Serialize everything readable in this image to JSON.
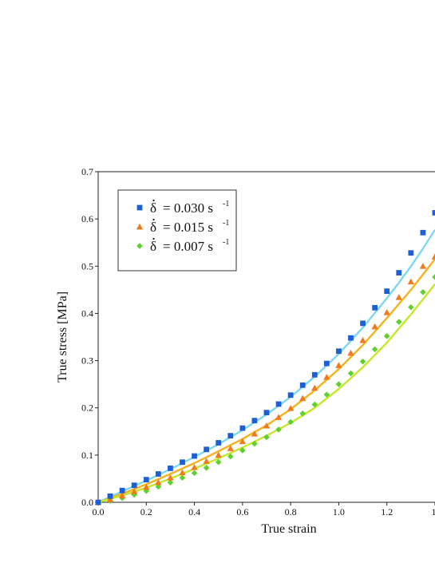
{
  "chart_data": {
    "type": "scatter",
    "title": "",
    "xlabel": "True strain",
    "ylabel": "True stress [MPa]",
    "xlim": [
      0.0,
      1.4
    ],
    "ylim": [
      0.0,
      0.7
    ],
    "xticks": [
      "0.0",
      "0.2",
      "0.4",
      "0.6",
      "0.8",
      "1.0",
      "1.2",
      "1."
    ],
    "yticks": [
      "0.0",
      "0.1",
      "0.2",
      "0.3",
      "0.4",
      "0.5",
      "0.6",
      "0.7"
    ],
    "legend_position": "top-left",
    "grid": false,
    "series": [
      {
        "name": "δ̇ = 0.030 s⁻¹",
        "legend_rate": "0.030",
        "marker": "square",
        "marker_color": "#1f5fd6",
        "fit_color": "#7ad8f5",
        "x": [
          0.0,
          0.05,
          0.1,
          0.15,
          0.2,
          0.25,
          0.3,
          0.35,
          0.4,
          0.45,
          0.5,
          0.55,
          0.6,
          0.65,
          0.7,
          0.75,
          0.8,
          0.85,
          0.9,
          0.95,
          1.0,
          1.05,
          1.1,
          1.15,
          1.2,
          1.25,
          1.3,
          1.35,
          1.4
        ],
        "y": [
          0.0,
          0.013,
          0.025,
          0.036,
          0.048,
          0.06,
          0.072,
          0.085,
          0.098,
          0.112,
          0.126,
          0.141,
          0.157,
          0.173,
          0.19,
          0.208,
          0.227,
          0.248,
          0.27,
          0.294,
          0.32,
          0.348,
          0.379,
          0.412,
          0.447,
          0.486,
          0.528,
          0.571,
          0.613
        ],
        "fit_x": [
          0.0,
          0.1,
          0.2,
          0.3,
          0.4,
          0.5,
          0.6,
          0.7,
          0.8,
          0.9,
          1.0,
          1.1,
          1.2,
          1.25,
          1.3,
          1.35,
          1.4
        ],
        "fit_y": [
          0.0,
          0.023,
          0.046,
          0.07,
          0.096,
          0.123,
          0.153,
          0.186,
          0.223,
          0.266,
          0.314,
          0.37,
          0.432,
          0.465,
          0.5,
          0.537,
          0.577
        ]
      },
      {
        "name": "δ̇ = 0.015 s⁻¹",
        "legend_rate": "0.015",
        "marker": "triangle",
        "marker_color": "#f07a1e",
        "fit_color": "#f5b21c",
        "x": [
          0.0,
          0.05,
          0.1,
          0.15,
          0.2,
          0.25,
          0.3,
          0.35,
          0.4,
          0.45,
          0.5,
          0.55,
          0.6,
          0.65,
          0.7,
          0.75,
          0.8,
          0.85,
          0.9,
          0.95,
          1.0,
          1.05,
          1.1,
          1.15,
          1.2,
          1.25,
          1.3,
          1.35,
          1.4
        ],
        "y": [
          0.0,
          0.006,
          0.014,
          0.023,
          0.032,
          0.042,
          0.052,
          0.063,
          0.074,
          0.087,
          0.1,
          0.114,
          0.129,
          0.145,
          0.162,
          0.18,
          0.199,
          0.22,
          0.242,
          0.265,
          0.29,
          0.316,
          0.343,
          0.372,
          0.402,
          0.434,
          0.467,
          0.5,
          0.52
        ],
        "fit_x": [
          0.0,
          0.1,
          0.2,
          0.3,
          0.4,
          0.5,
          0.6,
          0.7,
          0.8,
          0.9,
          1.0,
          1.1,
          1.2,
          1.3,
          1.4
        ],
        "fit_y": [
          0.0,
          0.018,
          0.038,
          0.06,
          0.083,
          0.108,
          0.134,
          0.163,
          0.197,
          0.237,
          0.282,
          0.333,
          0.39,
          0.45,
          0.515
        ]
      },
      {
        "name": "δ̇ = 0.007 s⁻¹",
        "legend_rate": "0.007",
        "marker": "diamond",
        "marker_color": "#5fd12e",
        "fit_color": "#c6e82a",
        "x": [
          0.0,
          0.05,
          0.1,
          0.15,
          0.2,
          0.25,
          0.3,
          0.35,
          0.4,
          0.45,
          0.5,
          0.55,
          0.6,
          0.65,
          0.7,
          0.75,
          0.8,
          0.85,
          0.9,
          0.95,
          1.0,
          1.05,
          1.1,
          1.15,
          1.2,
          1.25,
          1.3,
          1.35,
          1.4
        ],
        "y": [
          0.0,
          0.003,
          0.009,
          0.016,
          0.024,
          0.033,
          0.042,
          0.052,
          0.062,
          0.073,
          0.085,
          0.097,
          0.11,
          0.124,
          0.138,
          0.154,
          0.17,
          0.188,
          0.207,
          0.228,
          0.25,
          0.273,
          0.298,
          0.324,
          0.352,
          0.382,
          0.413,
          0.445,
          0.477
        ],
        "fit_x": [
          0.0,
          0.1,
          0.2,
          0.3,
          0.4,
          0.5,
          0.6,
          0.7,
          0.8,
          0.9,
          1.0,
          1.1,
          1.2,
          1.3,
          1.4
        ],
        "fit_y": [
          0.0,
          0.014,
          0.031,
          0.05,
          0.071,
          0.093,
          0.116,
          0.141,
          0.168,
          0.2,
          0.24,
          0.286,
          0.338,
          0.398,
          0.462
        ]
      }
    ]
  }
}
